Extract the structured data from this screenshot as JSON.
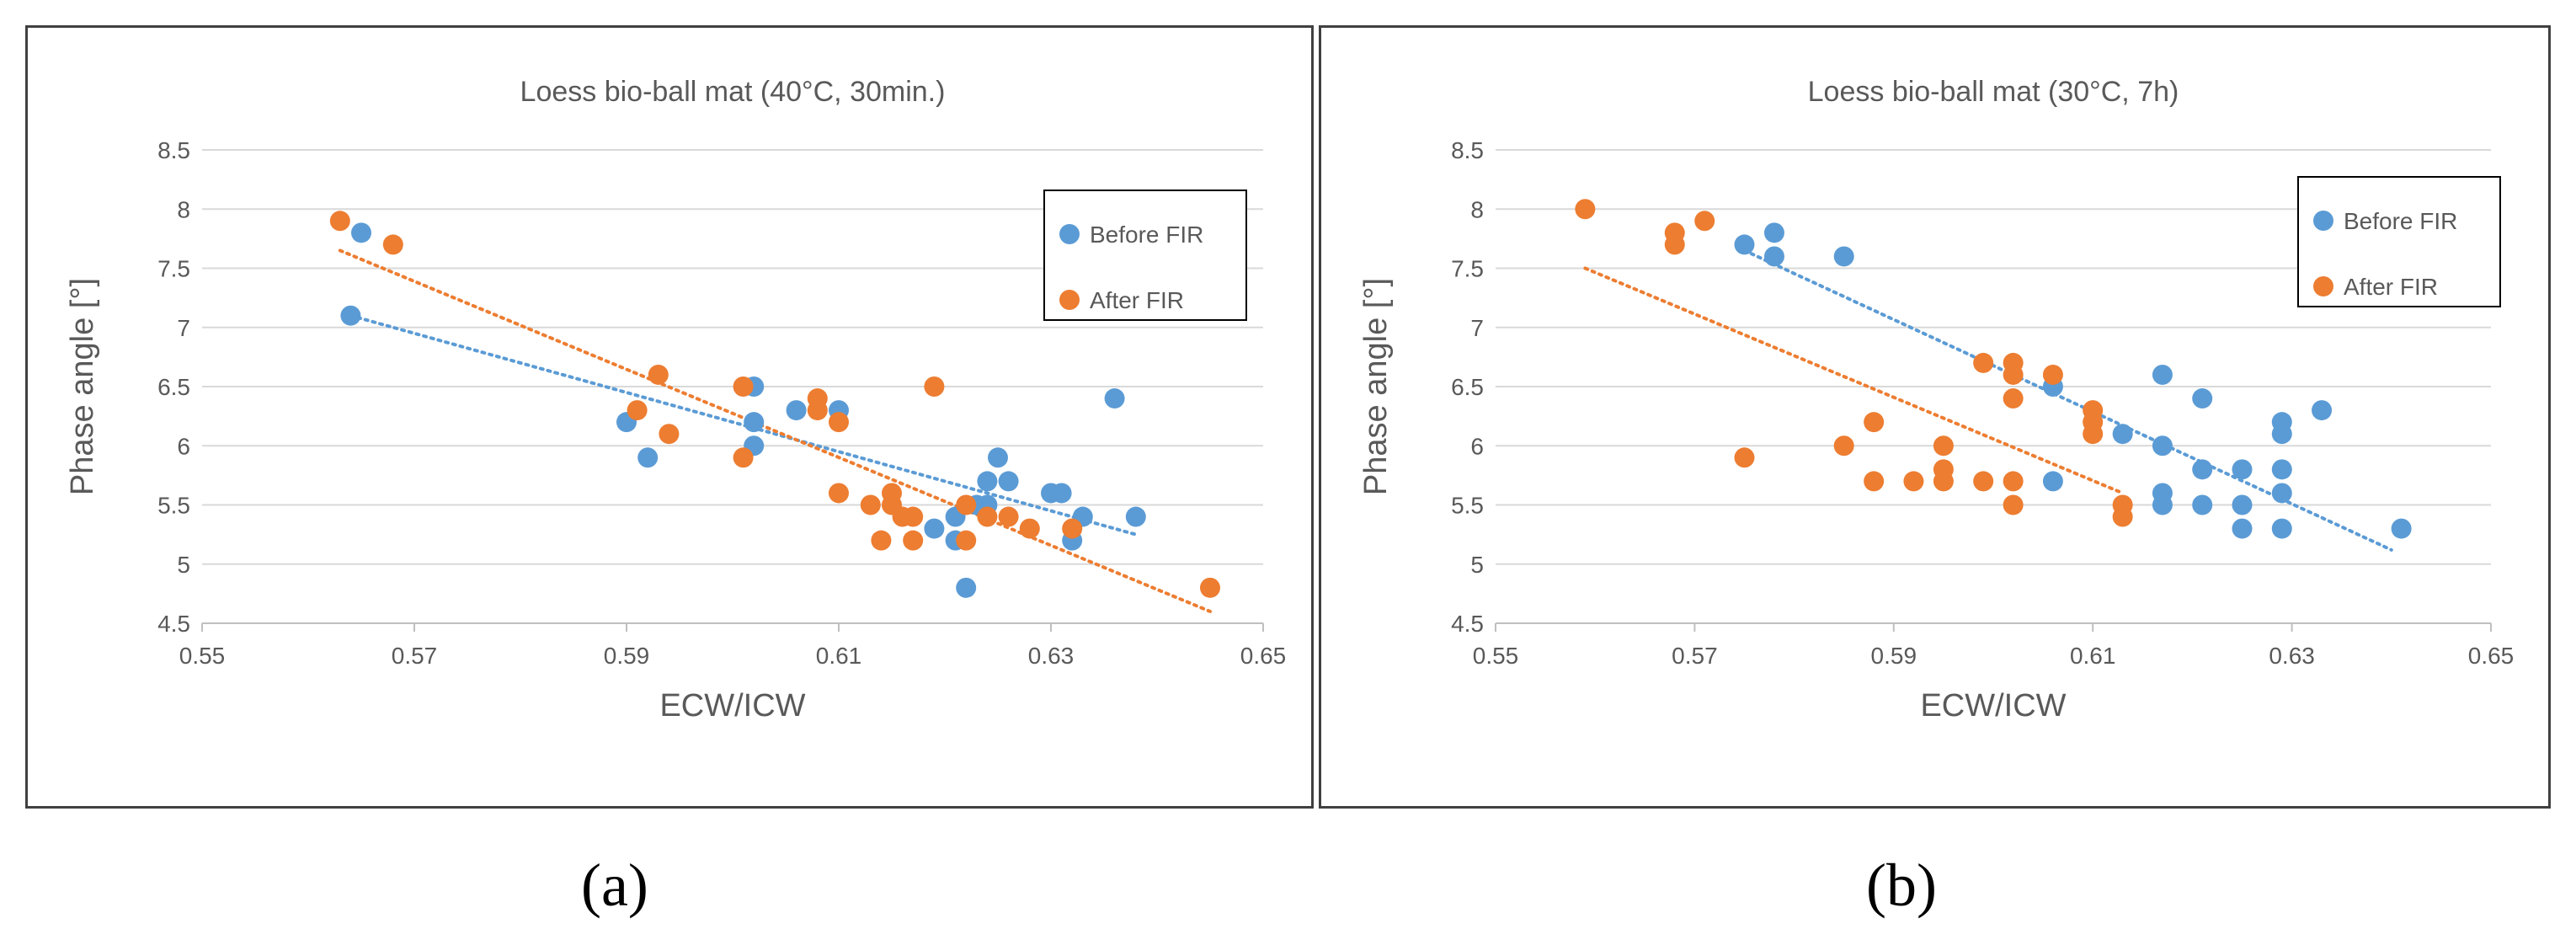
{
  "colors": {
    "before": "#5b9bd5",
    "after": "#ed7d31",
    "grid": "#d9d9d9",
    "text": "#595959",
    "frame": "#404040"
  },
  "chart_data": [
    {
      "type": "scatter",
      "panel_label": "(a)",
      "title": "Loess bio-ball mat (40°C, 30min.)",
      "xlabel": "ECW/ICW",
      "ylabel": "Phase angle [°]",
      "xlim": [
        0.55,
        0.65
      ],
      "ylim": [
        4.5,
        8.5
      ],
      "x_ticks": [
        "0.55",
        "0.57",
        "0.59",
        "0.61",
        "0.63",
        "0.65"
      ],
      "y_ticks": [
        "4.5",
        "5",
        "5.5",
        "6",
        "6.5",
        "7",
        "7.5",
        "8",
        "8.5"
      ],
      "grid": "horizontal",
      "legend_position": "top-right",
      "series": [
        {
          "name": "Before FIR",
          "color": "#5b9bd5",
          "points": [
            [
              0.564,
              7.1
            ],
            [
              0.565,
              7.8
            ],
            [
              0.59,
              6.2
            ],
            [
              0.592,
              5.9
            ],
            [
              0.602,
              6.5
            ],
            [
              0.602,
              6.2
            ],
            [
              0.602,
              6.0
            ],
            [
              0.606,
              6.3
            ],
            [
              0.61,
              6.3
            ],
            [
              0.619,
              5.3
            ],
            [
              0.621,
              5.4
            ],
            [
              0.621,
              5.2
            ],
            [
              0.622,
              4.8
            ],
            [
              0.623,
              5.5
            ],
            [
              0.624,
              5.7
            ],
            [
              0.624,
              5.5
            ],
            [
              0.625,
              5.9
            ],
            [
              0.626,
              5.7
            ],
            [
              0.63,
              5.6
            ],
            [
              0.631,
              5.6
            ],
            [
              0.632,
              5.2
            ],
            [
              0.633,
              5.4
            ],
            [
              0.636,
              6.4
            ],
            [
              0.638,
              5.4
            ]
          ],
          "trend": [
            [
              0.564,
              7.1
            ],
            [
              0.638,
              5.25
            ]
          ]
        },
        {
          "name": "After FIR",
          "color": "#ed7d31",
          "points": [
            [
              0.563,
              7.9
            ],
            [
              0.568,
              7.7
            ],
            [
              0.591,
              6.3
            ],
            [
              0.593,
              6.6
            ],
            [
              0.594,
              6.1
            ],
            [
              0.601,
              6.5
            ],
            [
              0.601,
              5.9
            ],
            [
              0.608,
              6.4
            ],
            [
              0.608,
              6.3
            ],
            [
              0.61,
              6.2
            ],
            [
              0.61,
              5.6
            ],
            [
              0.613,
              5.5
            ],
            [
              0.614,
              5.2
            ],
            [
              0.615,
              5.6
            ],
            [
              0.615,
              5.5
            ],
            [
              0.616,
              5.4
            ],
            [
              0.617,
              5.4
            ],
            [
              0.617,
              5.2
            ],
            [
              0.619,
              6.5
            ],
            [
              0.622,
              5.5
            ],
            [
              0.622,
              5.2
            ],
            [
              0.624,
              5.4
            ],
            [
              0.626,
              5.4
            ],
            [
              0.628,
              5.3
            ],
            [
              0.632,
              5.3
            ],
            [
              0.645,
              4.8
            ]
          ],
          "trend": [
            [
              0.563,
              7.65
            ],
            [
              0.645,
              4.6
            ]
          ]
        }
      ]
    },
    {
      "type": "scatter",
      "panel_label": "(b)",
      "title": "Loess bio-ball mat (30°C, 7h)",
      "xlabel": "ECW/ICW",
      "ylabel": "Phase angle [°]",
      "xlim": [
        0.55,
        0.65
      ],
      "ylim": [
        4.5,
        8.5
      ],
      "x_ticks": [
        "0.55",
        "0.57",
        "0.59",
        "0.61",
        "0.63",
        "0.65"
      ],
      "y_ticks": [
        "4.5",
        "5",
        "5.5",
        "6",
        "6.5",
        "7",
        "7.5",
        "8",
        "8.5"
      ],
      "grid": "horizontal",
      "legend_position": "top-right",
      "series": [
        {
          "name": "Before FIR",
          "color": "#5b9bd5",
          "points": [
            [
              0.575,
              7.7
            ],
            [
              0.578,
              7.8
            ],
            [
              0.578,
              7.6
            ],
            [
              0.585,
              7.6
            ],
            [
              0.606,
              6.5
            ],
            [
              0.606,
              5.7
            ],
            [
              0.613,
              6.1
            ],
            [
              0.617,
              6.6
            ],
            [
              0.617,
              6.0
            ],
            [
              0.617,
              5.6
            ],
            [
              0.617,
              5.5
            ],
            [
              0.621,
              6.4
            ],
            [
              0.621,
              5.8
            ],
            [
              0.621,
              5.5
            ],
            [
              0.625,
              5.8
            ],
            [
              0.625,
              5.5
            ],
            [
              0.625,
              5.3
            ],
            [
              0.629,
              6.2
            ],
            [
              0.629,
              6.1
            ],
            [
              0.629,
              5.8
            ],
            [
              0.629,
              5.6
            ],
            [
              0.629,
              5.3
            ],
            [
              0.633,
              6.3
            ],
            [
              0.641,
              5.3
            ]
          ],
          "trend": [
            [
              0.575,
              7.65
            ],
            [
              0.64,
              5.12
            ]
          ]
        },
        {
          "name": "After FIR",
          "color": "#ed7d31",
          "points": [
            [
              0.559,
              8.0
            ],
            [
              0.568,
              7.8
            ],
            [
              0.568,
              7.7
            ],
            [
              0.571,
              7.9
            ],
            [
              0.575,
              5.9
            ],
            [
              0.585,
              6.0
            ],
            [
              0.588,
              6.2
            ],
            [
              0.588,
              5.7
            ],
            [
              0.592,
              5.7
            ],
            [
              0.595,
              6.0
            ],
            [
              0.595,
              5.8
            ],
            [
              0.595,
              5.7
            ],
            [
              0.599,
              6.7
            ],
            [
              0.599,
              5.7
            ],
            [
              0.602,
              6.7
            ],
            [
              0.602,
              6.6
            ],
            [
              0.602,
              6.4
            ],
            [
              0.602,
              5.7
            ],
            [
              0.602,
              5.5
            ],
            [
              0.606,
              6.6
            ],
            [
              0.61,
              6.3
            ],
            [
              0.61,
              6.2
            ],
            [
              0.61,
              6.1
            ],
            [
              0.613,
              5.5
            ],
            [
              0.613,
              5.4
            ]
          ],
          "trend": [
            [
              0.559,
              7.5
            ],
            [
              0.613,
              5.6
            ]
          ]
        }
      ]
    }
  ]
}
